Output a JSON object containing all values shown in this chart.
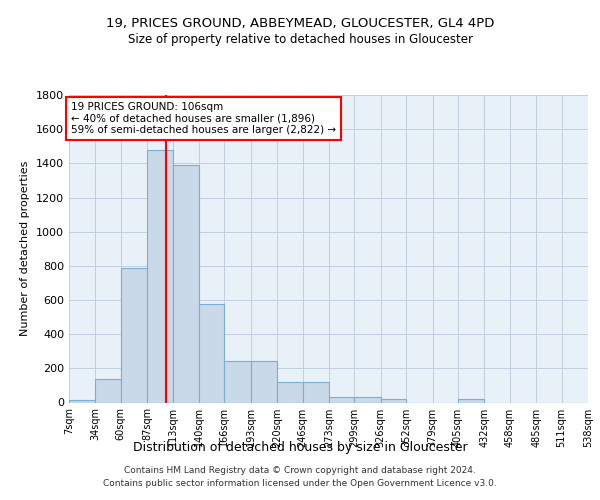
{
  "title1": "19, PRICES GROUND, ABBEYMEAD, GLOUCESTER, GL4 4PD",
  "title2": "Size of property relative to detached houses in Gloucester",
  "xlabel": "Distribution of detached houses by size in Gloucester",
  "ylabel": "Number of detached properties",
  "bin_labels": [
    "7sqm",
    "34sqm",
    "60sqm",
    "87sqm",
    "113sqm",
    "140sqm",
    "166sqm",
    "193sqm",
    "220sqm",
    "246sqm",
    "273sqm",
    "299sqm",
    "326sqm",
    "352sqm",
    "379sqm",
    "405sqm",
    "432sqm",
    "458sqm",
    "485sqm",
    "511sqm",
    "538sqm"
  ],
  "bar_values": [
    15,
    135,
    790,
    1480,
    1390,
    575,
    245,
    245,
    120,
    120,
    35,
    30,
    20,
    0,
    0,
    20,
    0,
    0,
    0,
    0,
    0
  ],
  "bar_color": "#c9d9e8",
  "bar_edge_color": "#7aafd4",
  "grid_color": "#c0d0e0",
  "bg_color": "#e8f0f8",
  "vline_x": 106,
  "vline_color": "red",
  "annotation_text": "19 PRICES GROUND: 106sqm\n← 40% of detached houses are smaller (1,896)\n59% of semi-detached houses are larger (2,822) →",
  "annotation_box_color": "white",
  "annotation_box_edge": "red",
  "ylim": [
    0,
    1800
  ],
  "yticks": [
    0,
    200,
    400,
    600,
    800,
    1000,
    1200,
    1400,
    1600,
    1800
  ],
  "footer_text": "Contains HM Land Registry data © Crown copyright and database right 2024.\nContains public sector information licensed under the Open Government Licence v3.0.",
  "bin_edges": [
    7,
    34,
    60,
    87,
    113,
    140,
    166,
    193,
    220,
    246,
    273,
    299,
    326,
    352,
    379,
    405,
    432,
    458,
    485,
    511,
    538
  ]
}
